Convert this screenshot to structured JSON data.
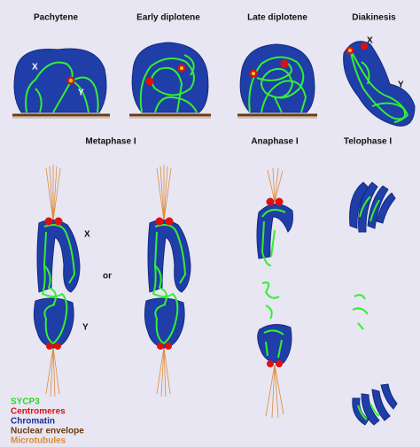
{
  "top_row": [
    "Pachytene",
    "Early diplotene",
    "Late diplotene",
    "Diakinesis"
  ],
  "bottom_row": [
    "Metaphase I",
    "Anaphase I",
    "Telophase I"
  ],
  "pachytene_labels": [
    "X",
    "Y"
  ],
  "diakinesis_labels": [
    "X",
    "Y"
  ],
  "metaphase_labels": [
    "X",
    "Y"
  ],
  "connector": "or",
  "legend": [
    {
      "label": "SYCP3",
      "color": "#22dd22"
    },
    {
      "label": "Centromeres",
      "color": "#dd1111"
    },
    {
      "label": "Chromatin",
      "color": "#1a2fa0"
    },
    {
      "label": "Nuclear envelope",
      "color": "#6b3a12"
    },
    {
      "label": "Microtubules",
      "color": "#e08a3a"
    }
  ]
}
